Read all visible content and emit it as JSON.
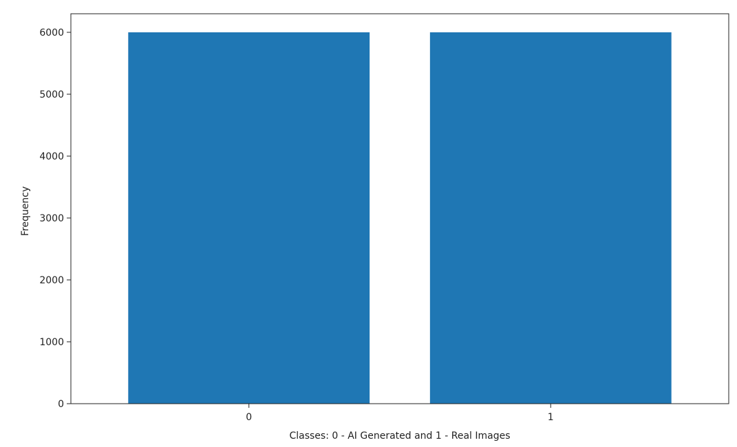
{
  "chart_data": {
    "type": "bar",
    "title": "",
    "xlabel": "Classes: 0 - AI Generated and 1 - Real Images",
    "ylabel": "Frequency",
    "categories": [
      "0",
      "1"
    ],
    "values": [
      6000,
      6000
    ],
    "ylim": [
      0,
      6300
    ],
    "yticks": [
      0,
      1000,
      2000,
      3000,
      4000,
      5000,
      6000
    ],
    "grid": false,
    "legend": "none",
    "bar_color": "#1f77b4",
    "axis_color": "#222222"
  }
}
